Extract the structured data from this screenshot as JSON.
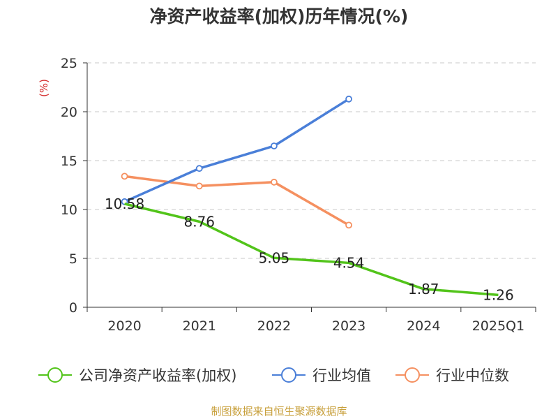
{
  "chart_data": {
    "type": "line",
    "title": "净资产收益率(加权)历年情况(%)",
    "ylabel": "(%)",
    "xlabel": "",
    "categories": [
      "2020",
      "2021",
      "2022",
      "2023",
      "2024",
      "2025Q1"
    ],
    "ylim": [
      0,
      25
    ],
    "yticks": [
      0,
      5,
      10,
      15,
      20,
      25
    ],
    "grid": true,
    "legend_position": "bottom",
    "series": [
      {
        "name": "公司净资产收益率(加权)",
        "color": "#52c41a",
        "values": [
          10.58,
          8.76,
          5.05,
          4.54,
          1.87,
          1.26
        ],
        "data_labels": [
          "10.58",
          "8.76",
          "5.05",
          "4.54",
          "1.87",
          "1.26"
        ]
      },
      {
        "name": "行业均值",
        "color": "#4a7fd8",
        "values": [
          10.8,
          14.2,
          16.5,
          21.3,
          null,
          null
        ]
      },
      {
        "name": "行业中位数",
        "color": "#f59060",
        "values": [
          13.4,
          12.4,
          12.8,
          8.4,
          null,
          null
        ]
      }
    ]
  },
  "source": "制图数据来自恒生聚源数据库"
}
